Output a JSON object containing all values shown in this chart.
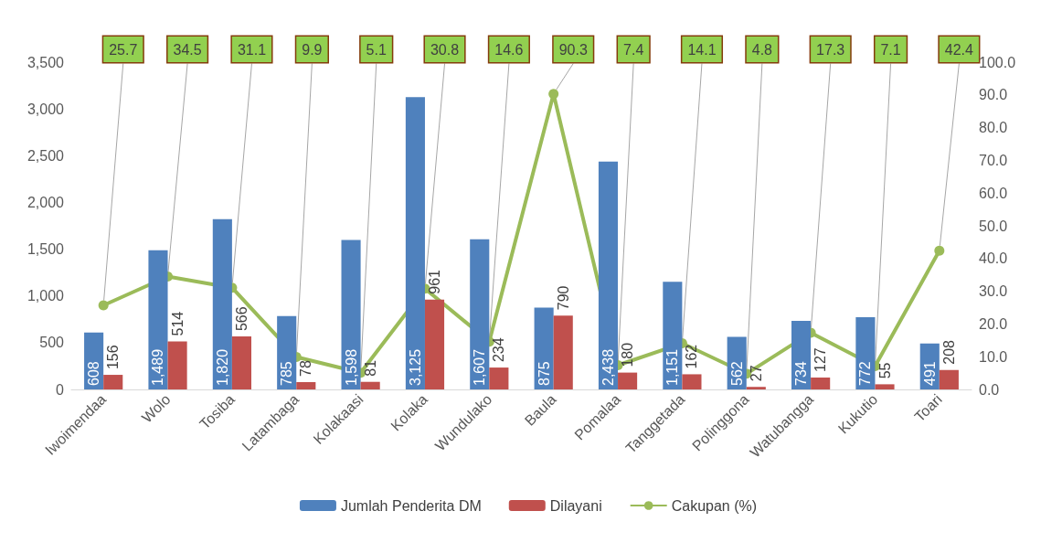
{
  "chart_data": {
    "type": "bar",
    "categories": [
      "Iwoimendaa",
      "Wolo",
      "Tosiba",
      "Latambaga",
      "Kolakaasi",
      "Kolaka",
      "Wundulako",
      "Baula",
      "Pomalaa",
      "Tanggetada",
      "Polinggona",
      "Watubangga",
      "Kukutio",
      "Toari"
    ],
    "series": [
      {
        "name": "Jumlah Penderita DM",
        "color": "#4f81bd",
        "values": [
          608,
          1489,
          1820,
          785,
          1598,
          3125,
          1607,
          875,
          2438,
          1151,
          562,
          734,
          772,
          491
        ],
        "value_labels": [
          "608",
          "1,489",
          "1,820",
          "785",
          "1,598",
          "3,125",
          "1,607",
          "875",
          "2,438",
          "1,151",
          "562",
          "734",
          "772",
          "491"
        ]
      },
      {
        "name": "Dilayani",
        "color": "#c0504d",
        "values": [
          156,
          514,
          566,
          78,
          81,
          961,
          234,
          790,
          180,
          162,
          27,
          127,
          55,
          208
        ],
        "value_labels": [
          "156",
          "514",
          "566",
          "78",
          "81",
          "961",
          "234",
          "790",
          "180",
          "162",
          "27",
          "127",
          "55",
          "208"
        ]
      },
      {
        "name": "Cakupan (%)",
        "type": "line",
        "axis": "y2",
        "color": "#9bbb59",
        "marker": "circle",
        "values": [
          25.7,
          34.5,
          31.1,
          9.9,
          5.1,
          30.8,
          14.6,
          90.3,
          7.4,
          14.1,
          4.8,
          17.3,
          7.1,
          42.4
        ],
        "value_labels": [
          "25.7",
          "34.5",
          "31.1",
          "9.9",
          "5.1",
          "30.8",
          "14.6",
          "90.3",
          "7.4",
          "14.1",
          "4.8",
          "17.3",
          "7.1",
          "42.4"
        ]
      }
    ],
    "ylim": [
      0,
      3500
    ],
    "yticks": [
      0,
      500,
      {
        "value": 1000,
        "label": "1,000"
      },
      {
        "value": 1500,
        "label": "1,500"
      },
      {
        "value": 2000,
        "label": "2,000"
      },
      {
        "value": 2500,
        "label": "2,500"
      },
      {
        "value": 3000,
        "label": "3,000"
      },
      {
        "value": 3500,
        "label": "3,500"
      }
    ],
    "y2lim": [
      0,
      100
    ],
    "y2ticks": [
      {
        "value": 0,
        "label": "0.0"
      },
      {
        "value": 10,
        "label": "10.0"
      },
      {
        "value": 20,
        "label": "20.0"
      },
      {
        "value": 30,
        "label": "30.0"
      },
      {
        "value": 40,
        "label": "40.0"
      },
      {
        "value": 50,
        "label": "50.0"
      },
      {
        "value": 60,
        "label": "60.0"
      },
      {
        "value": 70,
        "label": "70.0"
      },
      {
        "value": 80,
        "label": "80.0"
      },
      {
        "value": 90,
        "label": "90.0"
      },
      {
        "value": 100,
        "label": "100.0"
      }
    ],
    "grid": false,
    "legend": "bottom"
  }
}
